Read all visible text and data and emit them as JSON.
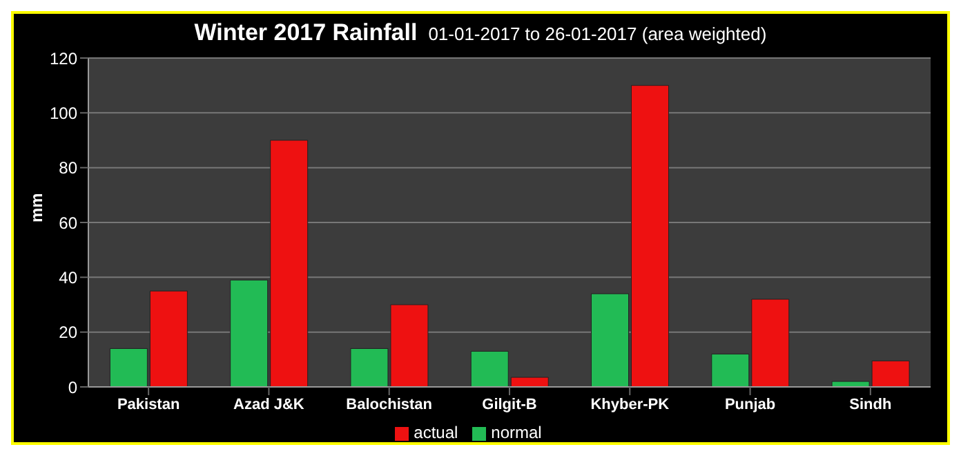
{
  "chart_data": {
    "type": "bar",
    "title": "Winter 2017 Rainfall",
    "subtitle": "01-01-2017 to 26-01-2017  (area weighted)",
    "ylabel": "mm",
    "categories": [
      "Pakistan",
      "Azad J&K",
      "Balochistan",
      "Gilgit-B",
      "Khyber-PK",
      "Punjab",
      "Sindh"
    ],
    "series": [
      {
        "name": "normal",
        "color": "#22bb55",
        "values": [
          14,
          39,
          14,
          13,
          34,
          12,
          2
        ]
      },
      {
        "name": "actual",
        "color": "#ee1111",
        "values": [
          35,
          90,
          30,
          3.5,
          110,
          32,
          9.5
        ]
      }
    ],
    "ylim": [
      0,
      120
    ],
    "yticks": [
      0,
      20,
      40,
      60,
      80,
      100,
      120
    ],
    "grid": "y",
    "legend": "bottom"
  }
}
